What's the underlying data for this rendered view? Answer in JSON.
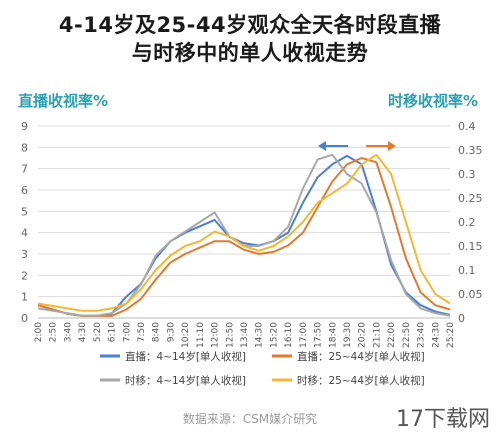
{
  "title_line1": "4-14岁及25-44岁观众全天各时段直播",
  "title_line2": "与时移中的单人收视走势",
  "left_axis_label": "直播收视率%",
  "right_axis_label": "时移收视率%",
  "source": "数据来源：CSM媒介研究",
  "watermark": "17下载网",
  "chart_data": {
    "type": "line",
    "categories": [
      "2:00",
      "2:50",
      "3:40",
      "4:30",
      "5:20",
      "6:10",
      "7:00",
      "7:50",
      "8:40",
      "9:30",
      "10:20",
      "11:10",
      "12:00",
      "12:50",
      "13:40",
      "14:30",
      "15:20",
      "16:10",
      "17:00",
      "17:50",
      "18:40",
      "19:30",
      "20:20",
      "21:10",
      "22:00",
      "22:50",
      "23:40",
      "24:30",
      "25:20"
    ],
    "ylim_left": [
      0,
      9
    ],
    "yticks_left": [
      "0",
      "1",
      "2",
      "3",
      "4",
      "5",
      "6",
      "7",
      "8",
      "9"
    ],
    "ylim_right": [
      0,
      0.4
    ],
    "yticks_right": [
      "0",
      "0.05",
      "0.1",
      "0.15",
      "0.2",
      "0.25",
      "0.3",
      "0.35",
      "0.4"
    ],
    "series": [
      {
        "name": "直播：4~14岁[单人收视]",
        "axis": "left",
        "color": "#4a7fd0",
        "values": [
          0.6,
          0.4,
          0.2,
          0.1,
          0.1,
          0.2,
          1.0,
          1.6,
          2.8,
          3.6,
          4.0,
          4.3,
          4.6,
          3.8,
          3.5,
          3.4,
          3.6,
          4.0,
          5.4,
          6.6,
          7.2,
          7.6,
          7.2,
          5.0,
          2.5,
          1.2,
          0.6,
          0.3,
          0.15
        ]
      },
      {
        "name": "直播：25~44岁[单人收视]",
        "axis": "left",
        "color": "#e07a2e",
        "values": [
          0.6,
          0.4,
          0.2,
          0.1,
          0.1,
          0.1,
          0.4,
          0.9,
          1.8,
          2.6,
          3.0,
          3.3,
          3.6,
          3.6,
          3.2,
          3.0,
          3.1,
          3.4,
          4.0,
          5.2,
          6.4,
          7.2,
          7.5,
          7.3,
          5.2,
          2.8,
          1.2,
          0.6,
          0.4
        ]
      },
      {
        "name": "时移：4~14岁[单人收视]",
        "axis": "right",
        "color": "#a8a8a8",
        "values": [
          0.02,
          0.015,
          0.01,
          0.005,
          0.005,
          0.01,
          0.03,
          0.07,
          0.13,
          0.16,
          0.18,
          0.2,
          0.22,
          0.17,
          0.15,
          0.15,
          0.16,
          0.19,
          0.27,
          0.33,
          0.34,
          0.3,
          0.28,
          0.22,
          0.12,
          0.05,
          0.02,
          0.01,
          0.005
        ]
      },
      {
        "name": "时移：25~44岁[单人收视]",
        "axis": "right",
        "color": "#f5b731",
        "values": [
          0.03,
          0.025,
          0.02,
          0.015,
          0.015,
          0.02,
          0.03,
          0.06,
          0.1,
          0.13,
          0.15,
          0.16,
          0.18,
          0.17,
          0.15,
          0.14,
          0.15,
          0.17,
          0.2,
          0.24,
          0.26,
          0.28,
          0.32,
          0.34,
          0.3,
          0.2,
          0.1,
          0.05,
          0.03
        ]
      }
    ],
    "annotations": [
      {
        "type": "arrow-left",
        "color": "#4a7fd0"
      },
      {
        "type": "arrow-right",
        "color": "#e07a2e"
      }
    ],
    "grid": "horizontal",
    "legend_placement": "bottom"
  }
}
